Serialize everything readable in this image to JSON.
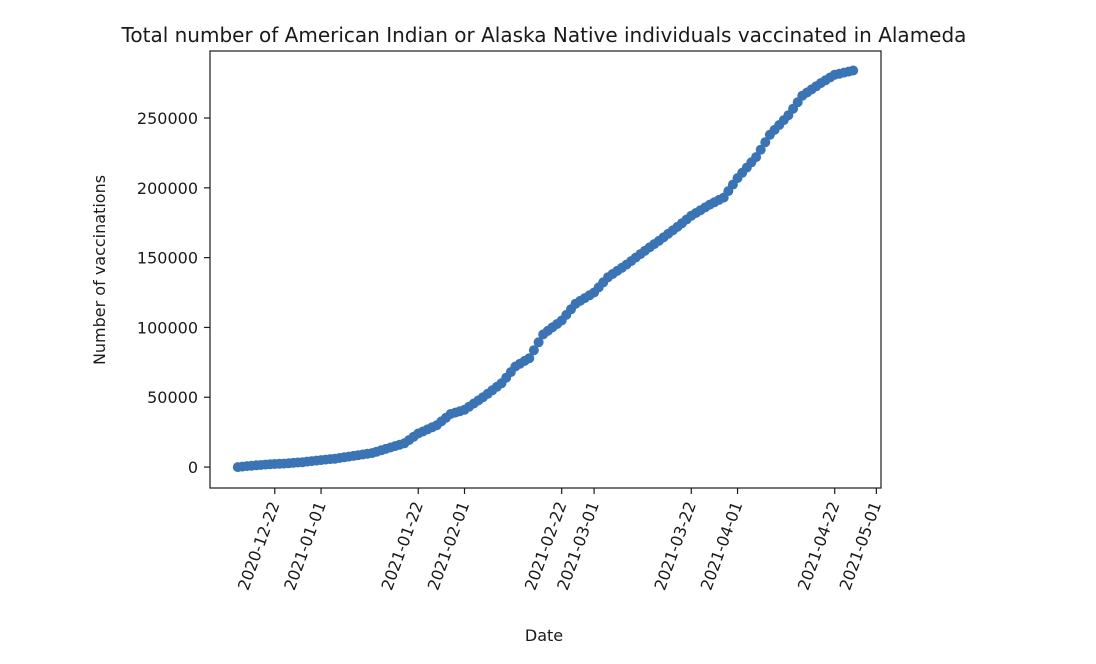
{
  "chart_data": {
    "type": "scatter",
    "title": "Total number of American Indian or Alaska Native individuals vaccinated in Alameda",
    "xlabel": "Date",
    "ylabel": "Number of vaccinations",
    "x_ticks": [
      "2020-12-22",
      "2021-01-01",
      "2021-01-22",
      "2021-02-01",
      "2021-02-22",
      "2021-03-01",
      "2021-03-22",
      "2021-04-01",
      "2021-04-22",
      "2021-05-01"
    ],
    "y_ticks": [
      0,
      50000,
      100000,
      150000,
      200000,
      250000
    ],
    "xlim": [
      "2020-12-08",
      "2021-05-02"
    ],
    "ylim": [
      -15000,
      298000
    ],
    "grid": false,
    "marker_color": "#3a74b4",
    "series": [
      {
        "points": [
          [
            "2020-12-14",
            0
          ],
          [
            "2020-12-17",
            1000
          ],
          [
            "2020-12-21",
            2000
          ],
          [
            "2020-12-24",
            2500
          ],
          [
            "2020-12-28",
            3500
          ],
          [
            "2021-01-01",
            5000
          ],
          [
            "2021-01-04",
            6000
          ],
          [
            "2021-01-08",
            8000
          ],
          [
            "2021-01-12",
            10000
          ],
          [
            "2021-01-15",
            13000
          ],
          [
            "2021-01-19",
            17000
          ],
          [
            "2021-01-22",
            24000
          ],
          [
            "2021-01-26",
            30000
          ],
          [
            "2021-01-29",
            38000
          ],
          [
            "2021-02-01",
            41000
          ],
          [
            "2021-02-05",
            50000
          ],
          [
            "2021-02-09",
            60000
          ],
          [
            "2021-02-12",
            72000
          ],
          [
            "2021-02-15",
            78000
          ],
          [
            "2021-02-18",
            95000
          ],
          [
            "2021-02-22",
            105000
          ],
          [
            "2021-02-25",
            117000
          ],
          [
            "2021-03-01",
            125000
          ],
          [
            "2021-03-04",
            136000
          ],
          [
            "2021-03-08",
            145000
          ],
          [
            "2021-03-12",
            155000
          ],
          [
            "2021-03-15",
            162000
          ],
          [
            "2021-03-19",
            172000
          ],
          [
            "2021-03-22",
            180000
          ],
          [
            "2021-03-26",
            188000
          ],
          [
            "2021-03-29",
            193000
          ],
          [
            "2021-04-01",
            207000
          ],
          [
            "2021-04-05",
            222000
          ],
          [
            "2021-04-08",
            238000
          ],
          [
            "2021-04-12",
            252000
          ],
          [
            "2021-04-15",
            266000
          ],
          [
            "2021-04-19",
            275000
          ],
          [
            "2021-04-22",
            281000
          ],
          [
            "2021-04-26",
            284000
          ]
        ]
      }
    ]
  }
}
